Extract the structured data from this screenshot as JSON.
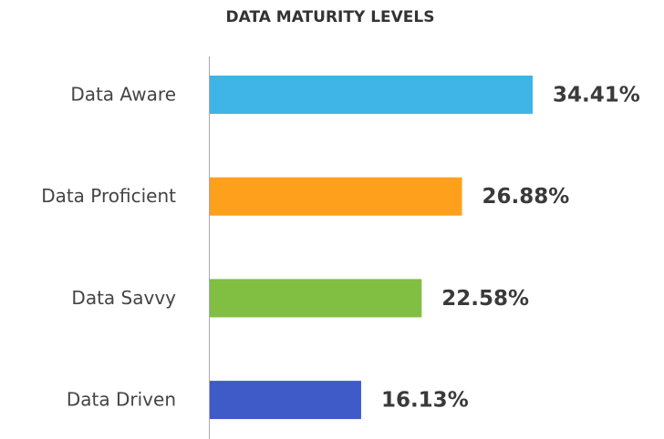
{
  "chart_data": {
    "type": "bar",
    "orientation": "horizontal",
    "title": "DATA MATURITY LEVELS",
    "categories": [
      "Data Aware",
      "Data Proficient",
      "Data Savvy",
      "Data Driven"
    ],
    "values": [
      34.41,
      26.88,
      22.58,
      16.13
    ],
    "value_labels": [
      "34.41%",
      "26.88%",
      "22.58%",
      "16.13%"
    ],
    "colors": [
      "#3eb5e6",
      "#ffa01c",
      "#80bf41",
      "#3f5bc8"
    ]
  }
}
